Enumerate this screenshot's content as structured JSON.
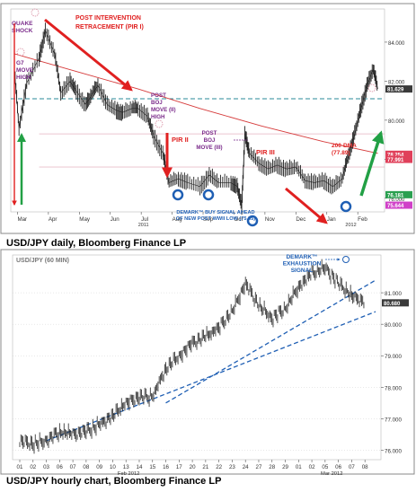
{
  "colors": {
    "price": "#222222",
    "ma": "#d63b3b",
    "annotation_red": "#e02020",
    "annotation_purple": "#7a2a8a",
    "annotation_blue": "#1f5fb4",
    "teal_dash": "#2a8a9a",
    "arrow_green": "#22a045",
    "fib_pink": "#d88ca0",
    "frame": "#888888"
  },
  "chart_data": [
    {
      "type": "line",
      "instrument": "USD/JPY daily",
      "caption": "USD/JPY daily, Bloomberg Finance LP",
      "x_tick_labels": [
        "Mar",
        "Apr",
        "May",
        "Jun",
        "Jul",
        "Aug",
        "Sep",
        "Oct",
        "Nov",
        "Dec",
        "Jan",
        "Feb"
      ],
      "x_year_labels": [
        "2011",
        "2012"
      ],
      "y_tick_labels": [
        "84.000",
        "82.000",
        "80.000",
        "78.000",
        "76.000"
      ],
      "ylim": [
        75.3,
        85.7
      ],
      "price_series": [
        {
          "x": 0.0,
          "y": 82.6
        },
        {
          "x": 0.15,
          "y": 79.6
        },
        {
          "x": 0.4,
          "y": 81.9
        },
        {
          "x": 0.8,
          "y": 83.2
        },
        {
          "x": 1.0,
          "y": 84.6
        },
        {
          "x": 1.3,
          "y": 83.4
        },
        {
          "x": 1.5,
          "y": 81.4
        },
        {
          "x": 1.8,
          "y": 82.0
        },
        {
          "x": 2.0,
          "y": 81.5
        },
        {
          "x": 2.3,
          "y": 80.8
        },
        {
          "x": 2.5,
          "y": 81.3
        },
        {
          "x": 2.7,
          "y": 81.8
        },
        {
          "x": 3.0,
          "y": 80.8
        },
        {
          "x": 3.3,
          "y": 80.5
        },
        {
          "x": 3.5,
          "y": 80.4
        },
        {
          "x": 3.8,
          "y": 80.6
        },
        {
          "x": 4.0,
          "y": 80.6
        },
        {
          "x": 4.3,
          "y": 80.2
        },
        {
          "x": 4.5,
          "y": 79.2
        },
        {
          "x": 4.8,
          "y": 78.3
        },
        {
          "x": 5.0,
          "y": 76.8
        },
        {
          "x": 5.3,
          "y": 77.0
        },
        {
          "x": 5.6,
          "y": 76.8
        },
        {
          "x": 6.0,
          "y": 76.6
        },
        {
          "x": 6.3,
          "y": 77.2
        },
        {
          "x": 6.6,
          "y": 76.8
        },
        {
          "x": 7.0,
          "y": 76.8
        },
        {
          "x": 7.2,
          "y": 76.6
        },
        {
          "x": 7.35,
          "y": 75.6
        },
        {
          "x": 7.45,
          "y": 79.3
        },
        {
          "x": 7.6,
          "y": 78.3
        },
        {
          "x": 7.9,
          "y": 77.8
        },
        {
          "x": 8.2,
          "y": 77.5
        },
        {
          "x": 8.5,
          "y": 77.7
        },
        {
          "x": 8.8,
          "y": 77.5
        },
        {
          "x": 9.1,
          "y": 77.6
        },
        {
          "x": 9.4,
          "y": 76.9
        },
        {
          "x": 9.7,
          "y": 76.8
        },
        {
          "x": 10.0,
          "y": 76.9
        },
        {
          "x": 10.3,
          "y": 76.6
        },
        {
          "x": 10.6,
          "y": 77.0
        },
        {
          "x": 10.8,
          "y": 78.2
        },
        {
          "x": 11.0,
          "y": 79.3
        },
        {
          "x": 11.2,
          "y": 80.6
        },
        {
          "x": 11.4,
          "y": 81.8
        },
        {
          "x": 11.6,
          "y": 82.6
        },
        {
          "x": 11.75,
          "y": 81.6
        }
      ],
      "ma_200_series": [
        {
          "x": 0.0,
          "y": 83.4
        },
        {
          "x": 2.0,
          "y": 82.5
        },
        {
          "x": 4.0,
          "y": 81.6
        },
        {
          "x": 6.0,
          "y": 80.6
        },
        {
          "x": 8.0,
          "y": 79.7
        },
        {
          "x": 10.0,
          "y": 78.9
        },
        {
          "x": 11.75,
          "y": 78.3
        }
      ],
      "horizontal_level_teal": 81.1,
      "horizontal_levels_pink": [
        79.3,
        77.6
      ],
      "level_tags": [
        {
          "value": "81.629",
          "y": 81.6,
          "color": "#3a3a3a"
        },
        {
          "value": "78.254",
          "y": 78.254,
          "color": "#e0405a"
        },
        {
          "value": "77.991",
          "y": 77.991,
          "color": "#e0405a"
        },
        {
          "value": "76.181",
          "y": 76.181,
          "color": "#2aa050"
        },
        {
          "value": "75.644",
          "y": 75.644,
          "color": "#d040c8"
        }
      ],
      "annotations": {
        "quake_shock": "QUAKE SHOCK",
        "g7_move_high": "G7 MOVE HIGH",
        "post_intervention": "POST INTERVENTION RETRACEMENT (PIR I)",
        "post_boj_ii": "POST BOJ MOVE (II) HIGH",
        "pir_ii": "PIR II",
        "post_boj_iii": "POST BOJ MOVE (III)",
        "pir_iii": "PIR III",
        "dma_200": "200-DMA (77.89)",
        "demark_signal": "DEMARK™ BUY SIGNAL AHEAD OF NEW POST WWII LOW (75.35)"
      }
    },
    {
      "type": "line",
      "instrument": "USD/JPY (60 MIN)",
      "title": "USD/JPY (60 MIN)",
      "caption": "USD/JPY hourly chart, Bloomberg Finance LP",
      "x_tick_labels": [
        "01",
        "02",
        "03",
        "06",
        "07",
        "08",
        "09",
        "10",
        "13",
        "14",
        "15",
        "16",
        "17",
        "20",
        "21",
        "22",
        "23",
        "24",
        "27",
        "28",
        "29",
        "01",
        "02",
        "05",
        "06",
        "07",
        "08"
      ],
      "x_month_labels": [
        "Feb 2012",
        "Mar 2012"
      ],
      "y_tick_labels": [
        "81.000",
        "80.000",
        "79.000",
        "78.000",
        "77.000",
        "76.000"
      ],
      "ylim": [
        75.7,
        82.2
      ],
      "price_series": [
        {
          "x": 0,
          "y": 76.3
        },
        {
          "x": 1,
          "y": 76.2
        },
        {
          "x": 2,
          "y": 76.3
        },
        {
          "x": 3,
          "y": 76.6
        },
        {
          "x": 4,
          "y": 76.5
        },
        {
          "x": 5,
          "y": 76.6
        },
        {
          "x": 6,
          "y": 76.8
        },
        {
          "x": 7,
          "y": 77.1
        },
        {
          "x": 8,
          "y": 77.5
        },
        {
          "x": 9,
          "y": 77.7
        },
        {
          "x": 10,
          "y": 77.7
        },
        {
          "x": 11,
          "y": 78.6
        },
        {
          "x": 12,
          "y": 79.0
        },
        {
          "x": 13,
          "y": 79.4
        },
        {
          "x": 14,
          "y": 79.6
        },
        {
          "x": 15,
          "y": 79.9
        },
        {
          "x": 16,
          "y": 80.4
        },
        {
          "x": 17,
          "y": 81.3
        },
        {
          "x": 18,
          "y": 80.6
        },
        {
          "x": 19,
          "y": 80.2
        },
        {
          "x": 20,
          "y": 80.5
        },
        {
          "x": 21,
          "y": 81.2
        },
        {
          "x": 22,
          "y": 81.6
        },
        {
          "x": 23,
          "y": 81.8
        },
        {
          "x": 24,
          "y": 81.3
        },
        {
          "x": 25,
          "y": 80.9
        },
        {
          "x": 26,
          "y": 80.7
        }
      ],
      "trendlines": [
        {
          "from": {
            "x": 2,
            "y": 76.3
          },
          "to": {
            "x": 26.8,
            "y": 80.4
          }
        },
        {
          "from": {
            "x": 11,
            "y": 77.5
          },
          "to": {
            "x": 26.8,
            "y": 81.4
          }
        }
      ],
      "last_price_tag": "80.680",
      "annotations": {
        "demark_exhaustion": "DEMARK™ EXHAUSTION SIGNAL"
      }
    }
  ]
}
